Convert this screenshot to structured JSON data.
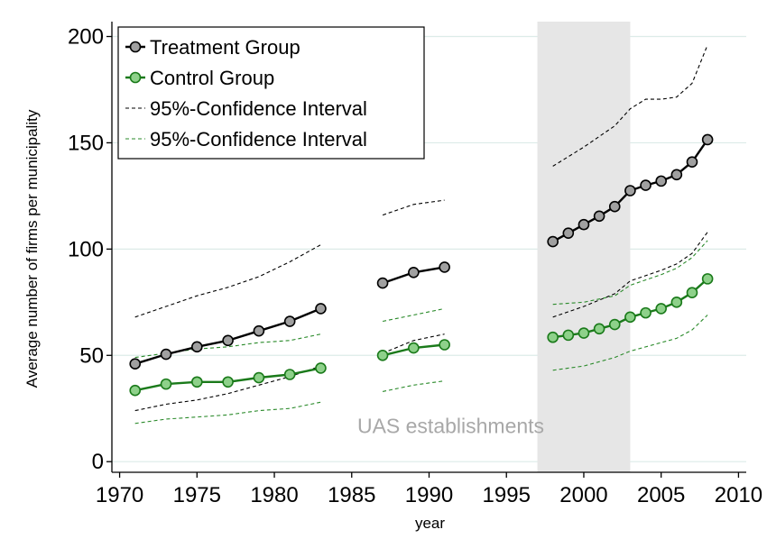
{
  "chart_data": {
    "type": "line",
    "xlabel": "year",
    "ylabel": "Average number of firms per municipality",
    "xlim": [
      1969.5,
      2010.5
    ],
    "ylim": [
      -5,
      207
    ],
    "xticks": [
      1970,
      1975,
      1980,
      1985,
      1990,
      1995,
      2000,
      2005,
      2010
    ],
    "yticks": [
      0,
      50,
      100,
      150,
      200
    ],
    "grid": "horizontal",
    "legend_placement": "top-left",
    "colors": {
      "treatment_line": "#000000",
      "treatment_marker": "#a0a0a0",
      "control_line": "#1a7a1a",
      "control_marker": "#8ed18a",
      "ci_treatment": "#000000",
      "ci_control": "#2a8a2a",
      "shade": "#e6e6e6",
      "grid": "#dcebe8",
      "annotation": "#a8a8a8"
    },
    "shaded_region": {
      "x0": 1997,
      "x1": 2003,
      "label": "UAS establishments"
    },
    "legend": [
      {
        "label": "Treatment Group",
        "style": "line-marker",
        "color": "#000000",
        "fill": "#a0a0a0"
      },
      {
        "label": "Control Group",
        "style": "line-marker",
        "color": "#1a7a1a",
        "fill": "#8ed18a"
      },
      {
        "label": "95%-Confidence Interval",
        "style": "dash",
        "color": "#000000"
      },
      {
        "label": "95%-Confidence Interval",
        "style": "dash",
        "color": "#2a8a2a"
      }
    ],
    "series": [
      {
        "name": "Treatment Group",
        "kind": "main",
        "color": "#000000",
        "fill": "#a0a0a0",
        "segments": [
          [
            [
              1971,
              46
            ],
            [
              1973,
              50.5
            ],
            [
              1975,
              54
            ],
            [
              1977,
              57
            ],
            [
              1979,
              61.5
            ],
            [
              1981,
              66
            ],
            [
              1983,
              72
            ]
          ],
          [
            [
              1987,
              84
            ],
            [
              1989,
              89
            ],
            [
              1991,
              91.5
            ]
          ],
          [
            [
              1998,
              103.5
            ],
            [
              1999,
              107.5
            ],
            [
              2000,
              111.5
            ],
            [
              2001,
              115.5
            ],
            [
              2002,
              120
            ],
            [
              2003,
              127.5
            ],
            [
              2004,
              130
            ],
            [
              2005,
              132
            ],
            [
              2006,
              135
            ],
            [
              2007,
              141
            ],
            [
              2008,
              151.5
            ]
          ]
        ]
      },
      {
        "name": "Control Group",
        "kind": "main",
        "color": "#1a7a1a",
        "fill": "#8ed18a",
        "segments": [
          [
            [
              1971,
              33.5
            ],
            [
              1973,
              36.5
            ],
            [
              1975,
              37.5
            ],
            [
              1977,
              37.5
            ],
            [
              1979,
              39.5
            ],
            [
              1981,
              41
            ],
            [
              1983,
              44
            ]
          ],
          [
            [
              1987,
              50
            ],
            [
              1989,
              53.5
            ],
            [
              1991,
              55
            ]
          ],
          [
            [
              1998,
              58.5
            ],
            [
              1999,
              59.5
            ],
            [
              2000,
              60.5
            ],
            [
              2001,
              62.5
            ],
            [
              2002,
              64.5
            ],
            [
              2003,
              68
            ],
            [
              2004,
              70
            ],
            [
              2005,
              72
            ],
            [
              2006,
              75
            ],
            [
              2007,
              79.5
            ],
            [
              2008,
              86
            ]
          ]
        ]
      },
      {
        "name": "95%-Confidence Interval",
        "kind": "ci",
        "color": "#000000",
        "segments": [
          [
            [
              1971,
              68
            ],
            [
              1973,
              73
            ],
            [
              1975,
              78
            ],
            [
              1977,
              82
            ],
            [
              1979,
              87
            ],
            [
              1981,
              94
            ],
            [
              1983,
              102
            ]
          ],
          [
            [
              1987,
              116
            ],
            [
              1989,
              121
            ],
            [
              1991,
              123
            ]
          ],
          [
            [
              1998,
              139
            ],
            [
              2000,
              148
            ],
            [
              2002,
              158
            ],
            [
              2003,
              166
            ],
            [
              2004,
              170.5
            ],
            [
              2005,
              170.5
            ],
            [
              2006,
              171.5
            ],
            [
              2007,
              178
            ],
            [
              2008,
              196
            ]
          ],
          [
            [
              1971,
              24
            ],
            [
              1973,
              27
            ],
            [
              1975,
              29
            ],
            [
              1977,
              32
            ],
            [
              1979,
              36
            ],
            [
              1981,
              40
            ],
            [
              1983,
              45
            ]
          ],
          [
            [
              1987,
              51
            ],
            [
              1989,
              57
            ],
            [
              1991,
              60
            ]
          ],
          [
            [
              1998,
              68
            ],
            [
              2000,
              73
            ],
            [
              2002,
              79
            ],
            [
              2003,
              85
            ],
            [
              2005,
              90
            ],
            [
              2006,
              93
            ],
            [
              2007,
              98
            ],
            [
              2008,
              108
            ]
          ]
        ]
      },
      {
        "name": "95%-Confidence Interval",
        "kind": "ci",
        "color": "#2a8a2a",
        "segments": [
          [
            [
              1971,
              49
            ],
            [
              1973,
              51
            ],
            [
              1975,
              53
            ],
            [
              1977,
              54
            ],
            [
              1979,
              56
            ],
            [
              1981,
              57
            ],
            [
              1983,
              60
            ]
          ],
          [
            [
              1987,
              66
            ],
            [
              1989,
              69
            ],
            [
              1991,
              72
            ]
          ],
          [
            [
              1998,
              74
            ],
            [
              2000,
              75
            ],
            [
              2002,
              78
            ],
            [
              2003,
              83
            ],
            [
              2005,
              88
            ],
            [
              2006,
              91
            ],
            [
              2007,
              96
            ],
            [
              2008,
              104
            ]
          ],
          [
            [
              1971,
              18
            ],
            [
              1973,
              20
            ],
            [
              1975,
              21
            ],
            [
              1977,
              22
            ],
            [
              1979,
              24
            ],
            [
              1981,
              25
            ],
            [
              1983,
              28
            ]
          ],
          [
            [
              1987,
              33
            ],
            [
              1989,
              36
            ],
            [
              1991,
              38
            ]
          ],
          [
            [
              1998,
              43
            ],
            [
              2000,
              45
            ],
            [
              2002,
              49
            ],
            [
              2003,
              52
            ],
            [
              2005,
              56
            ],
            [
              2006,
              58
            ],
            [
              2007,
              62
            ],
            [
              2008,
              69
            ]
          ]
        ]
      }
    ]
  }
}
